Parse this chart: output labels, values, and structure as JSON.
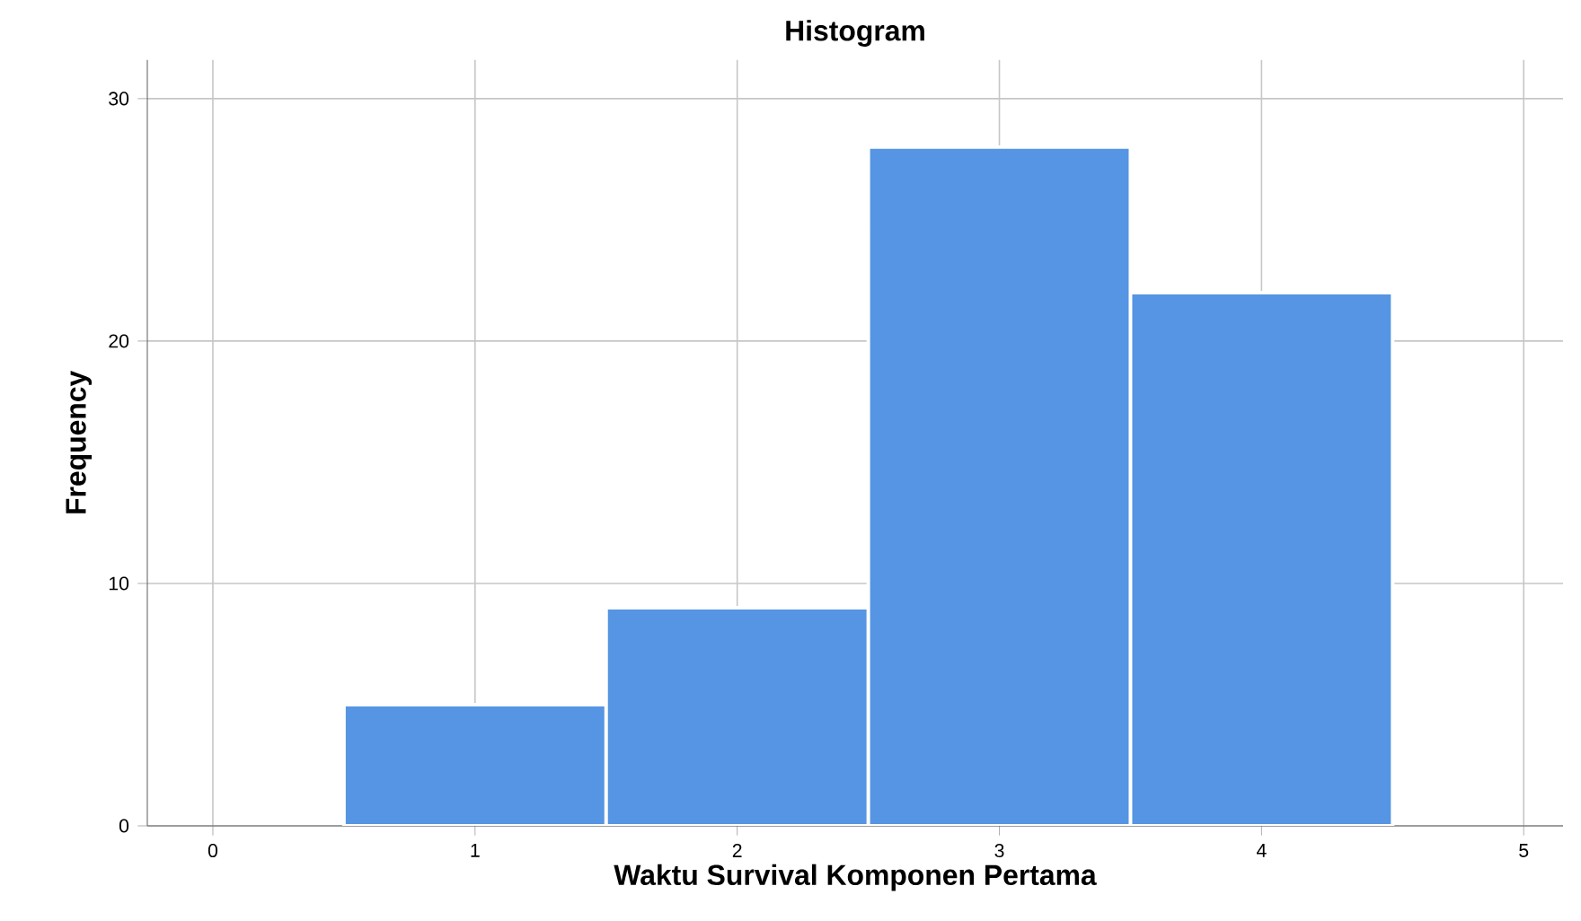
{
  "chart_data": {
    "type": "histogram",
    "title": "Histogram",
    "xlabel": "Waktu Survival Komponen Pertama",
    "ylabel": "Frequency",
    "bins": [
      0.5,
      1.5,
      2.5,
      3.5,
      4.5
    ],
    "values": [
      5,
      9,
      28,
      22
    ],
    "color": "#5595e3",
    "xlim": [
      -0.25,
      5.15
    ],
    "ylim": [
      0,
      31.6
    ],
    "xticks": [
      0,
      1,
      2,
      3,
      4,
      5
    ],
    "yticks": [
      0,
      10,
      20,
      30
    ],
    "grid": true
  }
}
